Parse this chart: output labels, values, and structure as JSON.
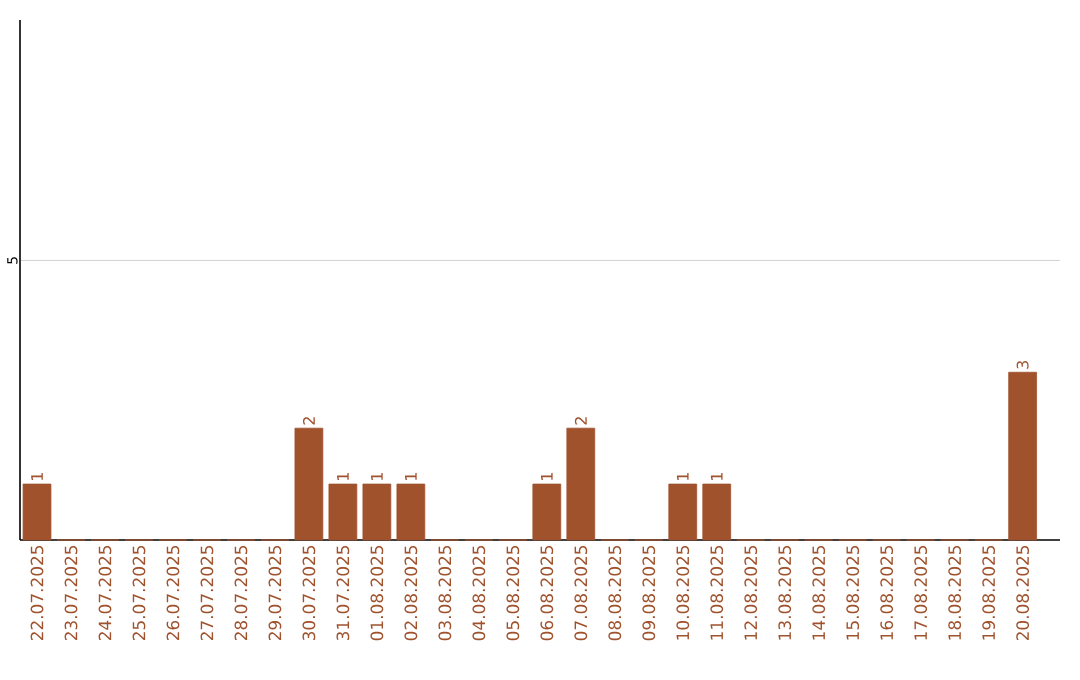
{
  "chart_data": {
    "type": "bar",
    "categories": [
      "22.07.2025",
      "23.07.2025",
      "24.07.2025",
      "25.07.2025",
      "26.07.2025",
      "27.07.2025",
      "28.07.2025",
      "29.07.2025",
      "30.07.2025",
      "31.07.2025",
      "01.08.2025",
      "02.08.2025",
      "03.08.2025",
      "04.08.2025",
      "05.08.2025",
      "06.08.2025",
      "07.08.2025",
      "08.08.2025",
      "09.08.2025",
      "10.08.2025",
      "11.08.2025",
      "12.08.2025",
      "13.08.2025",
      "14.08.2025",
      "15.08.2025",
      "16.08.2025",
      "17.08.2025",
      "18.08.2025",
      "19.08.2025",
      "20.08.2025"
    ],
    "values": [
      1,
      0,
      0,
      0,
      0,
      0,
      0,
      0,
      2,
      1,
      1,
      1,
      0,
      0,
      0,
      1,
      2,
      0,
      0,
      1,
      1,
      0,
      0,
      0,
      0,
      0,
      0,
      0,
      0,
      3
    ],
    "value_labels": [
      "1",
      null,
      null,
      null,
      null,
      null,
      null,
      null,
      "2",
      "1",
      "1",
      "1",
      null,
      null,
      null,
      "1",
      "2",
      null,
      null,
      "1",
      "1",
      null,
      null,
      null,
      null,
      null,
      null,
      null,
      null,
      "3"
    ],
    "color": "#a0522d",
    "ylim": [
      0,
      9.3
    ],
    "yticks": [
      5
    ],
    "grid": "y"
  }
}
